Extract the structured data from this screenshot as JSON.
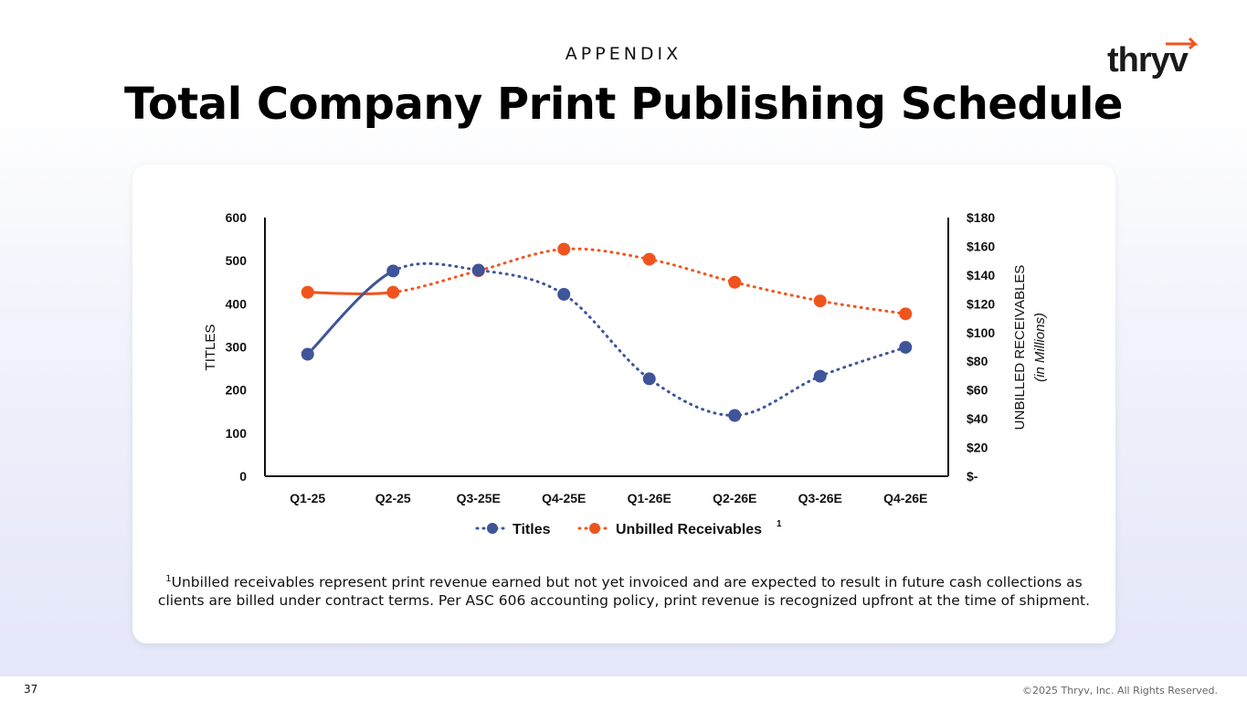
{
  "header": {
    "eyebrow": "APPENDIX",
    "title": "Total Company Print Publishing Schedule"
  },
  "logo": {
    "text": "thryv",
    "accent_color": "#F0541E"
  },
  "chart_data": {
    "type": "line",
    "categories": [
      "Q1-25",
      "Q2-25",
      "Q3-25E",
      "Q4-25E",
      "Q1-26E",
      "Q2-26E",
      "Q3-26E",
      "Q4-26E"
    ],
    "y_left": {
      "label": "TITLES",
      "range": [
        0,
        600
      ],
      "ticks": [
        "0",
        "100",
        "200",
        "300",
        "400",
        "500",
        "600"
      ]
    },
    "y_right": {
      "label": "UNBILLED RECEIVABLES",
      "sublabel": "(in Millions)",
      "range": [
        0,
        180
      ],
      "ticks": [
        "$-",
        "$20",
        "$40",
        "$60",
        "$80",
        "$100",
        "$120",
        "$140",
        "$160",
        "$180"
      ]
    },
    "series": [
      {
        "name": "Titles",
        "axis": "left",
        "color": "#3F5599",
        "values": [
          283,
          476,
          478,
          422,
          226,
          141,
          232,
          299
        ],
        "solid_through_index": 1
      },
      {
        "name": "Unbilled Receivables",
        "axis": "right",
        "color": "#F0541E",
        "values": [
          128,
          128,
          143,
          158,
          151,
          135,
          122,
          113
        ],
        "solid_through_index": 1
      }
    ],
    "legend": {
      "placement": "bottom",
      "superscript": "1"
    },
    "grid": false
  },
  "footnote": {
    "marker": "1",
    "text": "Unbilled receivables represent print revenue earned but not yet invoiced and are expected to result in future cash collections as clients are billed under contract terms. Per ASC 606 accounting policy, print revenue is recognized upfront at the time of shipment."
  },
  "footer": {
    "page_number": "37",
    "copyright": "©2025 Thryv, Inc. All Rights Reserved."
  }
}
